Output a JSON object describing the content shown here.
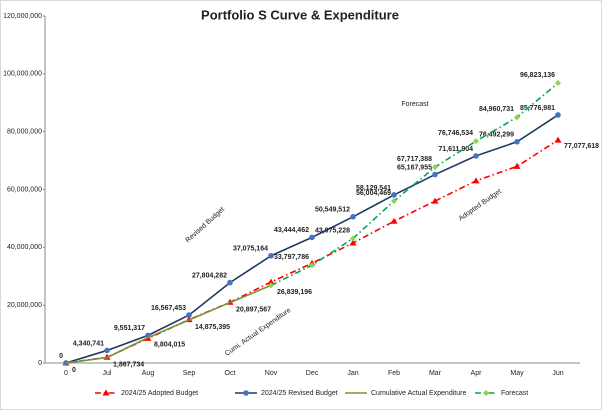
{
  "chart_data": {
    "type": "line",
    "title": "Portfolio S Curve & Expenditure",
    "categories": [
      "0",
      "Jul",
      "Aug",
      "Sep",
      "Oct",
      "Nov",
      "Dec",
      "Jan",
      "Feb",
      "Mar",
      "Apr",
      "May",
      "Jun"
    ],
    "ylim": [
      0,
      120000000
    ],
    "yticks": [
      0,
      {
        "value": 20000000,
        "label": "20,000,000"
      },
      {
        "value": 40000000,
        "label": "40,000,000"
      },
      {
        "value": 60000000,
        "label": "60,000,000"
      },
      {
        "value": 80000000,
        "label": "80,000,000"
      },
      {
        "value": 100000000,
        "label": "100,000,000"
      },
      {
        "value": 120000000,
        "label": "120,000,000"
      }
    ],
    "series": [
      {
        "name": "2024/25 Adopted Budget",
        "color": "#ff0000",
        "label_color": "#ff0000",
        "marker": "triangle",
        "dash": "dashdot",
        "values": [
          0,
          2000000,
          8500000,
          15000000,
          21000000,
          28000000,
          34500000,
          41500000,
          49000000,
          56000000,
          63000000,
          68000000,
          77077618
        ],
        "value_labels": [
          null,
          null,
          null,
          null,
          null,
          null,
          null,
          null,
          null,
          null,
          null,
          null,
          "77,077,618"
        ]
      },
      {
        "name": "2024/25 Revised Budget",
        "color": "#1f3864",
        "label_color": "#2e75b6",
        "marker": "circle",
        "marker_color": "#4472c4",
        "dash": "solid",
        "values": [
          0,
          4340741,
          9551317,
          16567453,
          27804282,
          37075164,
          43444462,
          50549512,
          58129541,
          65167955,
          71611904,
          76492299,
          85776981
        ],
        "value_labels": [
          "0",
          "4,340,741",
          "9,551,317",
          "16,567,453",
          "27,804,282",
          "37,075,164",
          "43,444,462",
          "50,549,512",
          "58,129,541",
          "65,167,955",
          "71,611,904",
          "76,492,299",
          "85,776,981"
        ]
      },
      {
        "name": "Cumulative Actual Expenditure",
        "color": "#77933c",
        "label_color": "#4f6228",
        "marker": "none",
        "dash": "solid",
        "values": [
          0,
          1867734,
          8804015,
          14875395,
          20897567,
          26839196,
          null,
          null,
          null,
          null,
          null,
          null,
          null
        ],
        "value_labels": [
          "0",
          "1,867,734",
          "8,804,015",
          "14,875,395",
          "20,897,567",
          "26,839,196",
          null,
          null,
          null,
          null,
          null,
          null,
          null
        ]
      },
      {
        "name": "Forecast",
        "color": "#00a651",
        "label_color": "#76923c",
        "marker": "diamond",
        "marker_color": "#92d050",
        "dash": "dashdot",
        "values": [
          null,
          null,
          null,
          null,
          null,
          26839196,
          33797786,
          43075228,
          56004469,
          67717388,
          76746534,
          84960731,
          96823136
        ],
        "value_labels": [
          null,
          null,
          null,
          null,
          null,
          null,
          "33,797,786",
          "43,075,228",
          "56,004,469",
          "67,717,388",
          "76,746,534",
          "84,960,731",
          "96,823,136"
        ]
      }
    ],
    "annotations": [
      "Revised Budget",
      "Forecast",
      "Adopted Budget",
      "Cumi. Actual Expenditure"
    ]
  }
}
